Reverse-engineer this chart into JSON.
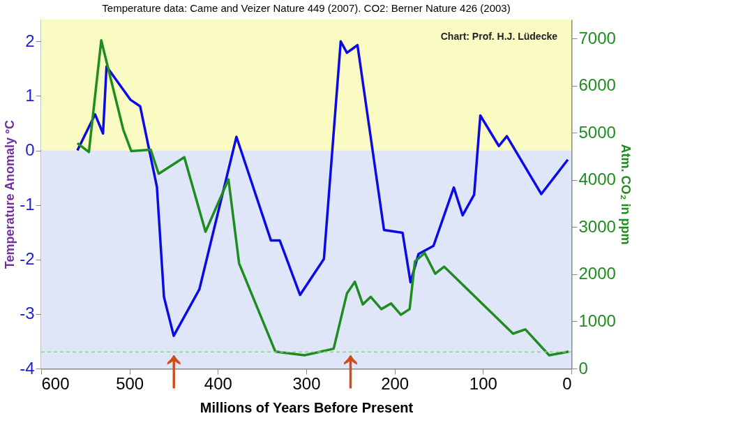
{
  "chart_data": {
    "type": "line",
    "title": "Temperature data: Came and Veizer Nature 449 (2007). CO2:  Berner Nature 426 (2003)",
    "xlabel": "Millions of Years Before Present",
    "ylabel": "Temperature Anomaly °C",
    "y2label": "Atm. CO₂ in ppm",
    "xlim": [
      600,
      0
    ],
    "xticks": [
      600,
      500,
      400,
      300,
      200,
      100,
      0
    ],
    "ylim": [
      -4,
      2.4
    ],
    "yticks": [
      -4,
      -3,
      -2,
      -1,
      0,
      1,
      2
    ],
    "y2lim": [
      0,
      7400
    ],
    "y2ticks": [
      0,
      1000,
      2000,
      3000,
      4000,
      5000,
      6000,
      7000
    ],
    "grid": false,
    "marker": "none",
    "line_style": "solid",
    "series": [
      {
        "color": "#0a0ae6",
        "x": [
          559,
          539,
          530,
          526,
          499,
          488,
          469,
          461,
          450,
          421,
          379,
          340,
          330,
          307,
          280,
          261,
          254,
          242,
          212,
          191,
          182,
          173,
          156,
          133,
          123,
          110,
          103,
          82,
          73,
          34,
          4
        ],
        "values": [
          0.0,
          0.66,
          0.31,
          1.54,
          0.93,
          0.81,
          -0.67,
          -2.69,
          -3.4,
          -2.55,
          0.25,
          -1.65,
          -1.65,
          -2.65,
          -1.99,
          2.0,
          1.79,
          1.93,
          -1.46,
          -1.51,
          -2.42,
          -1.9,
          -1.75,
          -0.68,
          -1.19,
          -0.81,
          0.64,
          0.08,
          0.26,
          -0.8,
          -0.17
        ]
      },
      {
        "color": "#1e8c1e",
        "axis": "y2",
        "x": [
          559,
          546,
          532,
          507,
          498,
          476,
          467,
          438,
          414,
          388,
          376,
          335,
          302,
          269,
          254,
          245,
          236,
          227,
          215,
          204,
          193,
          183,
          177,
          166,
          154,
          144,
          66,
          52,
          25,
          3
        ],
        "values": [
          4780,
          4590,
          6960,
          5060,
          4610,
          4640,
          4130,
          4480,
          2900,
          4010,
          2230,
          360,
          280,
          420,
          1590,
          1840,
          1360,
          1520,
          1260,
          1380,
          1140,
          1260,
          2270,
          2450,
          2010,
          2160,
          740,
          830,
          280,
          360
        ]
      }
    ],
    "bands": [
      {
        "axis": "y",
        "from": 0,
        "to": 2.4,
        "color": "#fafac3"
      },
      {
        "axis": "y",
        "from": -4,
        "to": 0,
        "color": "#dfe6f8"
      }
    ],
    "ref_lines": [
      {
        "axis": "y2",
        "value": 350,
        "color": "#8fcf8f",
        "line_style": "dashed"
      }
    ],
    "annotations": [
      "Chart: Prof. H.J. Lüdecke",
      {
        "text": "↑",
        "x": 450,
        "y": -3.68
      },
      {
        "text": "↑",
        "x": 250,
        "y": -3.68
      }
    ]
  }
}
